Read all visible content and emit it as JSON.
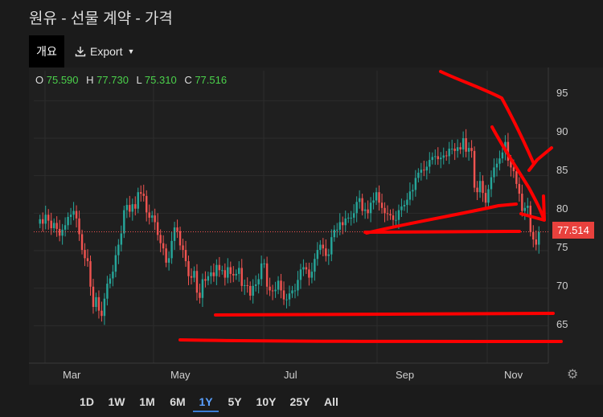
{
  "title": "원유 - 선물 계약 - 가격",
  "toolbar": {
    "tab_label": "개요",
    "export_label": "Export",
    "export_icon": "download-icon"
  },
  "ohlc": {
    "o_label": "O",
    "o": "75.590",
    "h_label": "H",
    "h": "77.730",
    "l_label": "L",
    "l": "75.310",
    "c_label": "C",
    "c": "77.516"
  },
  "last_price_label": "77.514",
  "colors": {
    "up": "#26a69a",
    "down": "#ef5350",
    "price_label_bg": "#e8413d",
    "annotation": "#ff0000",
    "ohlc_value": "#4bd14b",
    "active_range": "#5aa0ff"
  },
  "range_buttons": [
    "1D",
    "1W",
    "1M",
    "6M",
    "1Y",
    "5Y",
    "10Y",
    "25Y",
    "All"
  ],
  "active_range": "1Y",
  "chart_data": {
    "type": "candlestick",
    "y_ticks": [
      "95",
      "90",
      "85",
      "80",
      "75",
      "70",
      "65"
    ],
    "x_ticks": [
      "Mar",
      "May",
      "Jul",
      "Sep",
      "Nov"
    ],
    "ylim": [
      60,
      99
    ],
    "last_price": 77.514,
    "close_series": [
      79.2,
      78.6,
      79.8,
      79.0,
      78.0,
      78.7,
      77.9,
      77.0,
      77.8,
      78.4,
      79.5,
      79.8,
      80.3,
      79.3,
      77.2,
      75.1,
      74.0,
      73.6,
      70.2,
      67.5,
      68.8,
      67.0,
      66.3,
      68.6,
      70.6,
      71.3,
      72.2,
      74.4,
      75.8,
      77.3,
      80.4,
      81.1,
      80.2,
      81.2,
      80.6,
      82.8,
      82.6,
      82.3,
      80.1,
      79.4,
      79.7,
      78.8,
      77.1,
      76.0,
      75.3,
      73.4,
      74.0,
      76.3,
      78.1,
      77.6,
      75.7,
      75.1,
      73.6,
      71.6,
      71.4,
      72.3,
      69.4,
      68.7,
      71.2,
      71.0,
      71.6,
      72.1,
      71.6,
      73.1,
      72.4,
      72.4,
      71.4,
      72.8,
      71.9,
      71.7,
      71.9,
      72.7,
      70.3,
      70.4,
      70.3,
      69.0,
      70.3,
      70.5,
      71.2,
      73.3,
      73.3,
      70.2,
      69.7,
      69.6,
      69.8,
      71.0,
      69.7,
      68.5,
      68.5,
      69.3,
      69.7,
      69.7,
      71.1,
      72.5,
      72.8,
      72.5,
      71.4,
      72.2,
      73.9,
      75.1,
      75.8,
      75.3,
      74.3,
      74.5,
      76.8,
      77.8,
      77.8,
      78.8,
      78.4,
      79.3,
      79.4,
      79.4,
      80.0,
      81.5,
      82.0,
      80.3,
      80.5,
      80.0,
      81.4,
      81.7,
      82.8,
      81.4,
      80.7,
      80.0,
      79.9,
      79.7,
      79.1,
      79.1,
      80.4,
      80.9,
      81.1,
      81.8,
      82.9,
      83.1,
      84.7,
      85.4,
      85.8,
      85.7,
      86.2,
      87.1,
      87.5,
      87.6,
      87.2,
      87.4,
      87.7,
      87.6,
      88.6,
      88.6,
      88.3,
      88.8,
      88.5,
      90.0,
      88.2,
      88.7,
      88.3,
      83.4,
      82.8,
      84.3,
      82.7,
      81.4,
      83.2,
      84.8,
      86.1,
      86.6,
      87.3,
      88.1,
      89.5,
      87.0,
      86.1,
      85.6,
      83.9,
      82.6,
      80.3,
      80.7,
      81.0,
      77.5,
      76.5,
      75.8,
      77.5
    ]
  }
}
